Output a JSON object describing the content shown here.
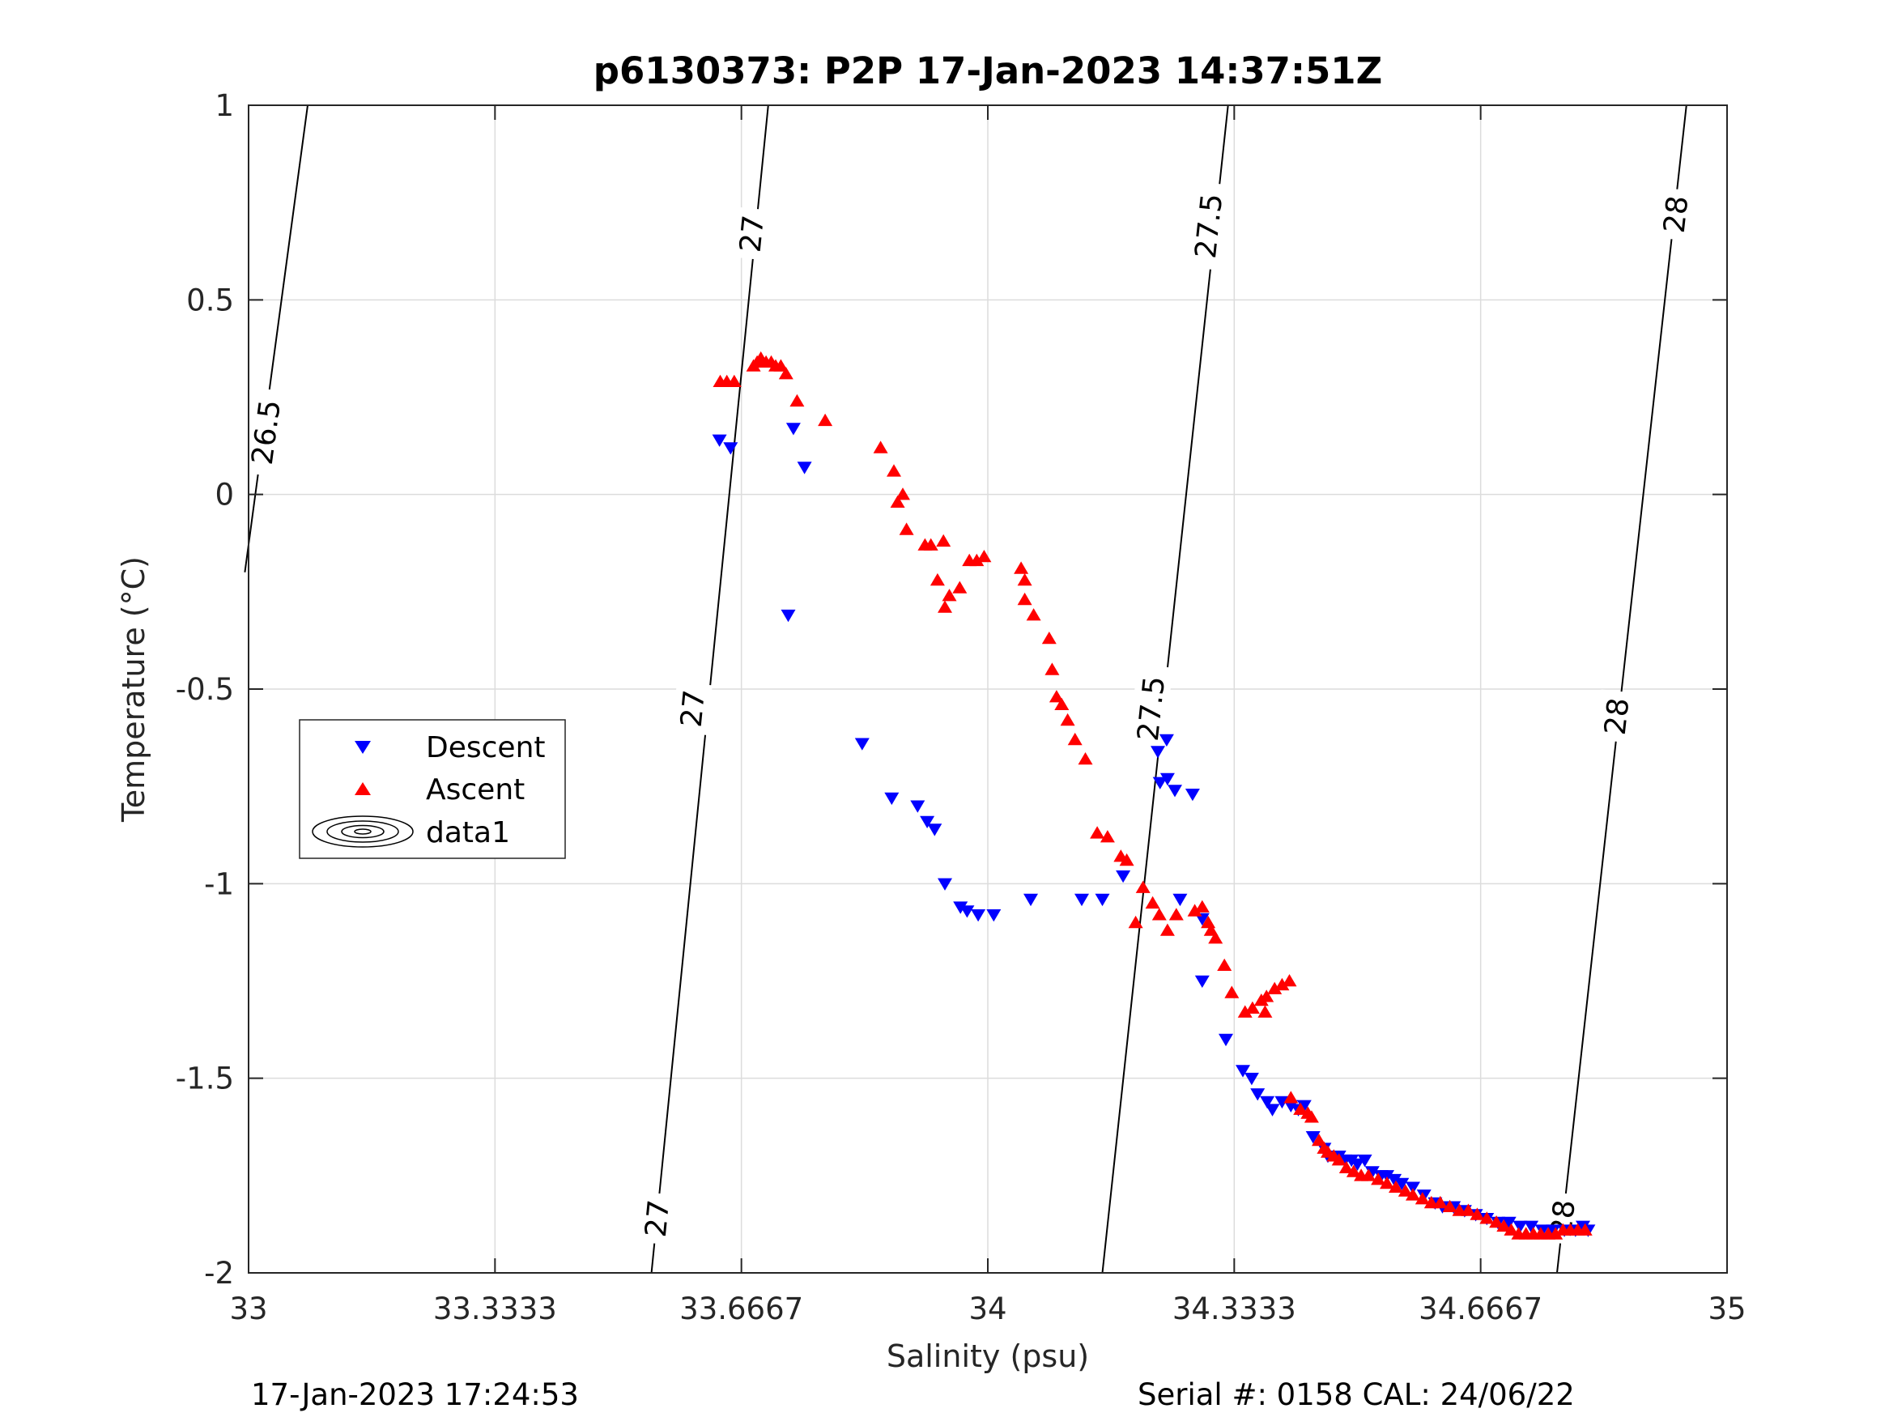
{
  "chart_data": {
    "type": "scatter",
    "title": "p6130373: P2P 17-Jan-2023 14:37:51Z",
    "xlabel": "Salinity (psu)",
    "ylabel": "Temperature (°C)",
    "xlim": [
      33,
      35
    ],
    "ylim": [
      -2,
      1
    ],
    "x_ticks": [
      "33",
      "33.3333",
      "33.6667",
      "34",
      "34.3333",
      "34.6667",
      "35"
    ],
    "y_ticks": [
      "-2",
      "-1.5",
      "-1",
      "-0.5",
      "0",
      "0.5",
      "1"
    ],
    "grid": true,
    "legend_position": "left",
    "legend": [
      "Descent",
      "Ascent",
      "data1"
    ],
    "footer_left": "17-Jan-2023 17:24:53",
    "footer_right": "Serial #: 0158  CAL: 24/06/22",
    "colors": {
      "descent": "#0000ff",
      "ascent": "#ff0000",
      "contour": "#000000",
      "grid": "#dcdcdc"
    },
    "density_contours": [
      {
        "level": "26.5",
        "points": [
          [
            32.995,
            -0.2
          ],
          [
            33.08,
            1.0
          ]
        ],
        "label_positions": [
          [
            33.023,
            0.16
          ]
        ]
      },
      {
        "level": "27",
        "points": [
          [
            33.545,
            -2.0
          ],
          [
            33.703,
            1.0
          ]
        ],
        "label_positions": [
          [
            33.552,
            -1.86
          ],
          [
            33.6,
            -0.55
          ],
          [
            33.68,
            0.67
          ]
        ]
      },
      {
        "level": "27.5",
        "points": [
          [
            34.155,
            -2.0
          ],
          [
            34.325,
            1.0
          ]
        ],
        "label_positions": [
          [
            34.22,
            -0.55
          ],
          [
            34.298,
            0.69
          ]
        ]
      },
      {
        "level": "28",
        "points": [
          [
            34.77,
            -2.0
          ],
          [
            34.945,
            1.0
          ]
        ],
        "label_positions": [
          [
            34.777,
            -1.86
          ],
          [
            34.85,
            -0.57
          ],
          [
            34.93,
            0.72
          ]
        ]
      }
    ],
    "series": [
      {
        "name": "Descent",
        "marker": "triangle-down",
        "points": [
          [
            33.637,
            0.14
          ],
          [
            33.652,
            0.12
          ],
          [
            33.737,
            0.17
          ],
          [
            33.752,
            0.07
          ],
          [
            33.73,
            -0.31
          ],
          [
            33.83,
            -0.64
          ],
          [
            33.87,
            -0.78
          ],
          [
            33.905,
            -0.8
          ],
          [
            33.918,
            -0.84
          ],
          [
            33.928,
            -0.86
          ],
          [
            33.942,
            -1.0
          ],
          [
            33.963,
            -1.06
          ],
          [
            33.972,
            -1.07
          ],
          [
            33.987,
            -1.08
          ],
          [
            34.008,
            -1.08
          ],
          [
            34.058,
            -1.04
          ],
          [
            34.127,
            -1.04
          ],
          [
            34.155,
            -1.04
          ],
          [
            34.183,
            -0.98
          ],
          [
            34.23,
            -0.66
          ],
          [
            34.242,
            -0.63
          ],
          [
            34.233,
            -0.74
          ],
          [
            34.243,
            -0.73
          ],
          [
            34.253,
            -0.76
          ],
          [
            34.26,
            -1.04
          ],
          [
            34.277,
            -0.77
          ],
          [
            34.29,
            -1.09
          ],
          [
            34.29,
            -1.25
          ],
          [
            34.322,
            -1.4
          ],
          [
            34.345,
            -1.48
          ],
          [
            34.357,
            -1.5
          ],
          [
            34.365,
            -1.54
          ],
          [
            34.378,
            -1.56
          ],
          [
            34.385,
            -1.58
          ],
          [
            34.398,
            -1.56
          ],
          [
            34.41,
            -1.57
          ],
          [
            34.42,
            -1.58
          ],
          [
            34.428,
            -1.57
          ],
          [
            34.44,
            -1.65
          ],
          [
            34.455,
            -1.68
          ],
          [
            34.46,
            -1.7
          ],
          [
            34.475,
            -1.7
          ],
          [
            34.483,
            -1.71
          ],
          [
            34.492,
            -1.71
          ],
          [
            34.5,
            -1.72
          ],
          [
            34.51,
            -1.71
          ],
          [
            34.52,
            -1.74
          ],
          [
            34.532,
            -1.75
          ],
          [
            34.54,
            -1.75
          ],
          [
            34.55,
            -1.76
          ],
          [
            34.56,
            -1.77
          ],
          [
            34.575,
            -1.78
          ],
          [
            34.59,
            -1.8
          ],
          [
            34.605,
            -1.82
          ],
          [
            34.615,
            -1.83
          ],
          [
            34.63,
            -1.83
          ],
          [
            34.645,
            -1.84
          ],
          [
            34.66,
            -1.85
          ],
          [
            34.675,
            -1.86
          ],
          [
            34.69,
            -1.87
          ],
          [
            34.705,
            -1.87
          ],
          [
            34.72,
            -1.88
          ],
          [
            34.735,
            -1.88
          ],
          [
            34.75,
            -1.89
          ],
          [
            34.765,
            -1.89
          ],
          [
            34.78,
            -1.89
          ],
          [
            34.795,
            -1.89
          ],
          [
            34.805,
            -1.88
          ],
          [
            34.812,
            -1.89
          ]
        ]
      },
      {
        "name": "Ascent",
        "marker": "triangle-up",
        "points": [
          [
            33.638,
            0.29
          ],
          [
            33.647,
            0.29
          ],
          [
            33.657,
            0.29
          ],
          [
            33.683,
            0.33
          ],
          [
            33.688,
            0.34
          ],
          [
            33.693,
            0.35
          ],
          [
            33.7,
            0.34
          ],
          [
            33.707,
            0.34
          ],
          [
            33.713,
            0.33
          ],
          [
            33.72,
            0.33
          ],
          [
            33.727,
            0.31
          ],
          [
            33.742,
            0.24
          ],
          [
            33.78,
            0.19
          ],
          [
            33.855,
            0.12
          ],
          [
            33.873,
            0.06
          ],
          [
            33.885,
            0.0
          ],
          [
            33.878,
            -0.02
          ],
          [
            33.89,
            -0.09
          ],
          [
            33.915,
            -0.13
          ],
          [
            33.923,
            -0.13
          ],
          [
            33.94,
            -0.12
          ],
          [
            33.932,
            -0.22
          ],
          [
            33.942,
            -0.29
          ],
          [
            33.948,
            -0.26
          ],
          [
            33.962,
            -0.24
          ],
          [
            33.975,
            -0.17
          ],
          [
            33.985,
            -0.17
          ],
          [
            33.995,
            -0.16
          ],
          [
            34.045,
            -0.19
          ],
          [
            34.05,
            -0.22
          ],
          [
            34.05,
            -0.27
          ],
          [
            34.062,
            -0.31
          ],
          [
            34.083,
            -0.37
          ],
          [
            34.087,
            -0.45
          ],
          [
            34.093,
            -0.52
          ],
          [
            34.1,
            -0.54
          ],
          [
            34.108,
            -0.58
          ],
          [
            34.118,
            -0.63
          ],
          [
            34.132,
            -0.68
          ],
          [
            34.148,
            -0.87
          ],
          [
            34.162,
            -0.88
          ],
          [
            34.18,
            -0.93
          ],
          [
            34.188,
            -0.94
          ],
          [
            34.21,
            -1.01
          ],
          [
            34.2,
            -1.1
          ],
          [
            34.223,
            -1.05
          ],
          [
            34.232,
            -1.08
          ],
          [
            34.243,
            -1.12
          ],
          [
            34.255,
            -1.08
          ],
          [
            34.28,
            -1.07
          ],
          [
            34.29,
            -1.06
          ],
          [
            34.298,
            -1.1
          ],
          [
            34.302,
            -1.12
          ],
          [
            34.308,
            -1.14
          ],
          [
            34.32,
            -1.21
          ],
          [
            34.33,
            -1.28
          ],
          [
            34.348,
            -1.33
          ],
          [
            34.358,
            -1.32
          ],
          [
            34.37,
            -1.3
          ],
          [
            34.377,
            -1.29
          ],
          [
            34.388,
            -1.27
          ],
          [
            34.398,
            -1.26
          ],
          [
            34.408,
            -1.25
          ],
          [
            34.375,
            -1.33
          ],
          [
            34.41,
            -1.55
          ],
          [
            34.423,
            -1.58
          ],
          [
            34.433,
            -1.59
          ],
          [
            34.438,
            -1.6
          ],
          [
            34.448,
            -1.66
          ],
          [
            34.455,
            -1.68
          ],
          [
            34.46,
            -1.69
          ],
          [
            34.468,
            -1.7
          ],
          [
            34.475,
            -1.71
          ],
          [
            34.485,
            -1.73
          ],
          [
            34.495,
            -1.74
          ],
          [
            34.505,
            -1.75
          ],
          [
            34.515,
            -1.75
          ],
          [
            34.528,
            -1.76
          ],
          [
            34.54,
            -1.77
          ],
          [
            34.552,
            -1.78
          ],
          [
            34.565,
            -1.79
          ],
          [
            34.575,
            -1.8
          ],
          [
            34.588,
            -1.81
          ],
          [
            34.6,
            -1.82
          ],
          [
            34.612,
            -1.82
          ],
          [
            34.625,
            -1.83
          ],
          [
            34.638,
            -1.84
          ],
          [
            34.65,
            -1.84
          ],
          [
            34.662,
            -1.85
          ],
          [
            34.675,
            -1.86
          ],
          [
            34.688,
            -1.87
          ],
          [
            34.698,
            -1.88
          ],
          [
            34.708,
            -1.89
          ],
          [
            34.718,
            -1.9
          ],
          [
            34.728,
            -1.9
          ],
          [
            34.738,
            -1.9
          ],
          [
            34.748,
            -1.9
          ],
          [
            34.758,
            -1.9
          ],
          [
            34.768,
            -1.9
          ],
          [
            34.778,
            -1.89
          ],
          [
            34.788,
            -1.89
          ],
          [
            34.798,
            -1.89
          ],
          [
            34.808,
            -1.89
          ]
        ]
      }
    ]
  }
}
